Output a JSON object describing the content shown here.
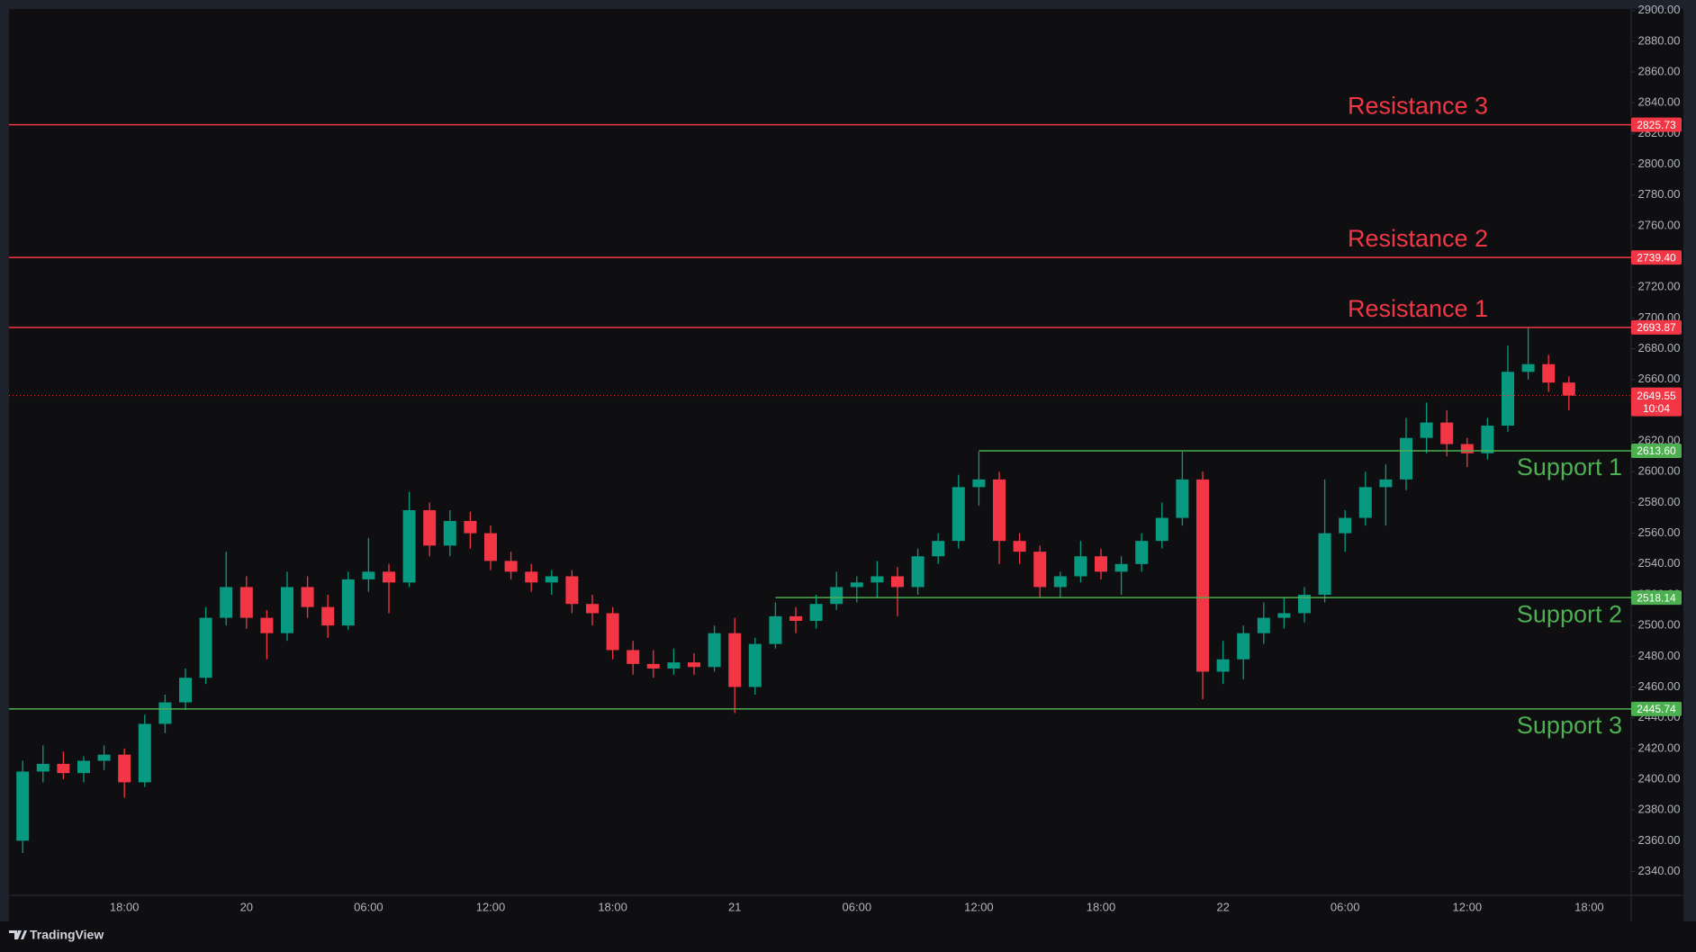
{
  "chart_data": {
    "type": "candlestick",
    "categories": [
      null,
      null,
      null,
      null,
      null,
      "18:00",
      null,
      null,
      null,
      null,
      null,
      "20",
      null,
      null,
      null,
      null,
      null,
      "06:00",
      null,
      null,
      null,
      null,
      null,
      "12:00",
      null,
      null,
      null,
      null,
      null,
      "18:00",
      null,
      null,
      null,
      null,
      null,
      "21",
      null,
      null,
      null,
      null,
      null,
      "06:00",
      null,
      null,
      null,
      null,
      null,
      "12:00",
      null,
      null,
      null,
      null,
      null,
      "18:00",
      null,
      null,
      null,
      null,
      null,
      "22",
      null,
      null,
      null,
      null,
      null,
      "06:00",
      null,
      null,
      null,
      null,
      null,
      "12:00",
      null,
      null,
      null,
      null,
      null,
      "18:00"
    ],
    "open": [
      2360,
      2405,
      2410,
      2404,
      2412,
      2416,
      2398,
      2436,
      2450,
      2466,
      2505,
      2525,
      2505,
      2495,
      2525,
      2512,
      2500,
      2530,
      2535,
      2528,
      2575,
      2552,
      2568,
      2560,
      2542,
      2535,
      2528,
      2532,
      2514,
      2508,
      2484,
      2475,
      2472,
      2476,
      2473,
      2495,
      2460,
      2488,
      2506,
      2503,
      2514,
      2525,
      2528,
      2532,
      2525,
      2545,
      2555,
      2590,
      2595,
      2555,
      2548,
      2525,
      2532,
      2545,
      2535,
      2540,
      2555,
      2570,
      2595,
      2470,
      2478,
      2495,
      2505,
      2508,
      2520,
      2560,
      2570,
      2590,
      2595,
      2622,
      2632,
      2618,
      2612,
      2630,
      2665,
      2670,
      2658,
      null
    ],
    "high": [
      2412,
      2422,
      2418,
      2415,
      2422,
      2420,
      2442,
      2455,
      2472,
      2512,
      2548,
      2532,
      2510,
      2535,
      2532,
      2520,
      2535,
      2557,
      2540,
      2587,
      2580,
      2575,
      2574,
      2565,
      2548,
      2540,
      2536,
      2536,
      2520,
      2512,
      2490,
      2484,
      2485,
      2482,
      2500,
      2505,
      2492,
      2515,
      2512,
      2520,
      2535,
      2532,
      2542,
      2538,
      2550,
      2560,
      2598,
      2613,
      2600,
      2560,
      2552,
      2535,
      2555,
      2550,
      2545,
      2560,
      2580,
      2613,
      2600,
      2490,
      2500,
      2515,
      2518,
      2525,
      2595,
      2575,
      2600,
      2605,
      2635,
      2645,
      2640,
      2622,
      2635,
      2682,
      2694,
      2676,
      2662,
      null
    ],
    "low": [
      2352,
      2398,
      2400,
      2398,
      2406,
      2388,
      2395,
      2430,
      2445,
      2462,
      2500,
      2498,
      2478,
      2490,
      2505,
      2492,
      2497,
      2522,
      2508,
      2525,
      2545,
      2545,
      2550,
      2536,
      2530,
      2522,
      2520,
      2508,
      2500,
      2478,
      2468,
      2466,
      2468,
      2468,
      2470,
      2443,
      2455,
      2485,
      2495,
      2498,
      2510,
      2515,
      2518,
      2506,
      2520,
      2540,
      2550,
      2578,
      2540,
      2540,
      2518,
      2518,
      2528,
      2530,
      2520,
      2535,
      2550,
      2565,
      2452,
      2462,
      2465,
      2488,
      2498,
      2502,
      2515,
      2548,
      2565,
      2565,
      2588,
      2612,
      2610,
      2603,
      2608,
      2626,
      2660,
      2652,
      2640,
      null
    ],
    "close": [
      2405,
      2410,
      2404,
      2412,
      2416,
      2398,
      2436,
      2450,
      2466,
      2505,
      2525,
      2505,
      2495,
      2525,
      2512,
      2500,
      2530,
      2535,
      2528,
      2575,
      2552,
      2568,
      2560,
      2542,
      2535,
      2528,
      2532,
      2514,
      2508,
      2484,
      2475,
      2472,
      2476,
      2473,
      2495,
      2460,
      2488,
      2506,
      2503,
      2514,
      2525,
      2528,
      2532,
      2525,
      2545,
      2555,
      2590,
      2595,
      2555,
      2548,
      2525,
      2532,
      2545,
      2535,
      2540,
      2555,
      2570,
      2595,
      2470,
      2478,
      2495,
      2505,
      2508,
      2520,
      2560,
      2570,
      2590,
      2595,
      2622,
      2632,
      2618,
      2612,
      2630,
      2665,
      2670,
      2658,
      2649.55,
      null
    ],
    "up_color": "#089981",
    "down_color": "#f23645",
    "ylim": [
      2324.5,
      2901
    ],
    "yticks": [
      {
        "value": 2340,
        "label": "2340.00"
      },
      {
        "value": 2360,
        "label": "2360.00"
      },
      {
        "value": 2380,
        "label": "2380.00"
      },
      {
        "value": 2400,
        "label": "2400.00"
      },
      {
        "value": 2420,
        "label": "2420.00"
      },
      {
        "value": 2440,
        "label": "2440.00"
      },
      {
        "value": 2460,
        "label": "2460.00"
      },
      {
        "value": 2480,
        "label": "2480.00"
      },
      {
        "value": 2500,
        "label": "2500.00"
      },
      {
        "value": 2520,
        "label": "2520.00"
      },
      {
        "value": 2540,
        "label": "2540.00"
      },
      {
        "value": 2560,
        "label": "2560.00"
      },
      {
        "value": 2580,
        "label": "2580.00"
      },
      {
        "value": 2600,
        "label": "2600.00"
      },
      {
        "value": 2620,
        "label": "2620.00"
      },
      {
        "value": 2640,
        "label": "2640.00"
      },
      {
        "value": 2660,
        "label": "2660.00"
      },
      {
        "value": 2680,
        "label": "2680.00"
      },
      {
        "value": 2700,
        "label": "2700.00"
      },
      {
        "value": 2720,
        "label": "2720.00"
      },
      {
        "value": 2740,
        "label": "2740.00"
      },
      {
        "value": 2760,
        "label": "2760.00"
      },
      {
        "value": 2780,
        "label": "2780.00"
      },
      {
        "value": 2800,
        "label": "2800.00"
      },
      {
        "value": 2820,
        "label": "2820.00"
      },
      {
        "value": 2840,
        "label": "2840.00"
      },
      {
        "value": 2860,
        "label": "2860.00"
      },
      {
        "value": 2880,
        "label": "2880.00"
      },
      {
        "value": 2900,
        "label": "2900.00"
      }
    ],
    "resistance_color": "#f23645",
    "support_color": "#4caf50",
    "resistance_levels": [
      {
        "name": "Resistance 3",
        "value": 2825.73,
        "value_label": "2825.73"
      },
      {
        "name": "Resistance 2",
        "value": 2739.4,
        "value_label": "2739.40"
      },
      {
        "name": "Resistance 1",
        "value": 2693.87,
        "value_label": "2693.87"
      }
    ],
    "support_levels": [
      {
        "name": "Support 1",
        "value": 2613.6,
        "value_label": "2613.60",
        "from": 47
      },
      {
        "name": "Support 2",
        "value": 2518.14,
        "value_label": "2518.14",
        "from": 37
      },
      {
        "name": "Support 3",
        "value": 2445.74,
        "value_label": "2445.74"
      }
    ],
    "countdown": "10:04",
    "watermark": "TradingView"
  }
}
